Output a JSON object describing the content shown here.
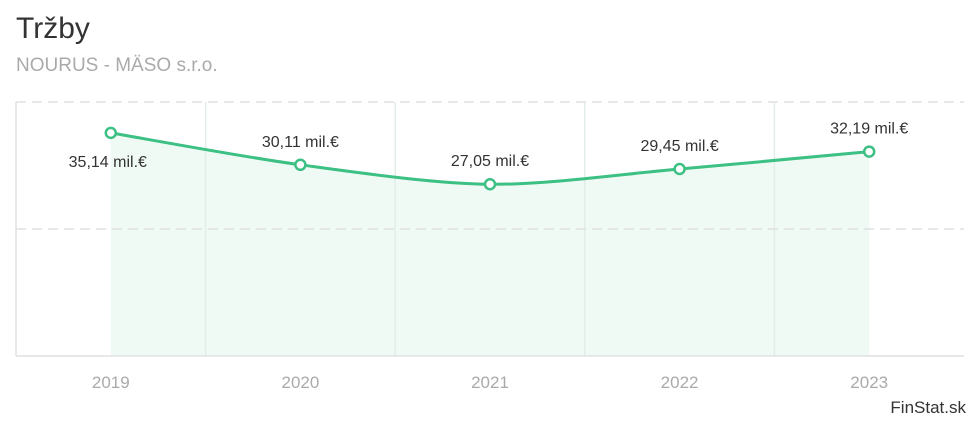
{
  "header": {
    "title": "Tržby",
    "subtitle": "NOURUS - MÄSO s.r.o."
  },
  "footer": {
    "brand": "FinStat.sk"
  },
  "colors": {
    "line": "#3cc083",
    "fill": "#f0faf5",
    "grid": "#e0e0e0",
    "vgrid": "#e3ede8"
  },
  "chart_data": {
    "type": "area",
    "title": "Tržby",
    "subtitle": "NOURUS - MÄSO s.r.o.",
    "categories": [
      "2019",
      "2020",
      "2021",
      "2022",
      "2023"
    ],
    "values": [
      35.14,
      30.11,
      27.05,
      29.45,
      32.19
    ],
    "labels": [
      "35,14 mil.€",
      "30,11 mil.€",
      "27,05 mil.€",
      "29,45 mil.€",
      "32,19 mil.€"
    ],
    "unit": "mil.€",
    "xlabel": "",
    "ylabel": "",
    "ylim": [
      0,
      40
    ],
    "grid": true,
    "legend": "none"
  }
}
